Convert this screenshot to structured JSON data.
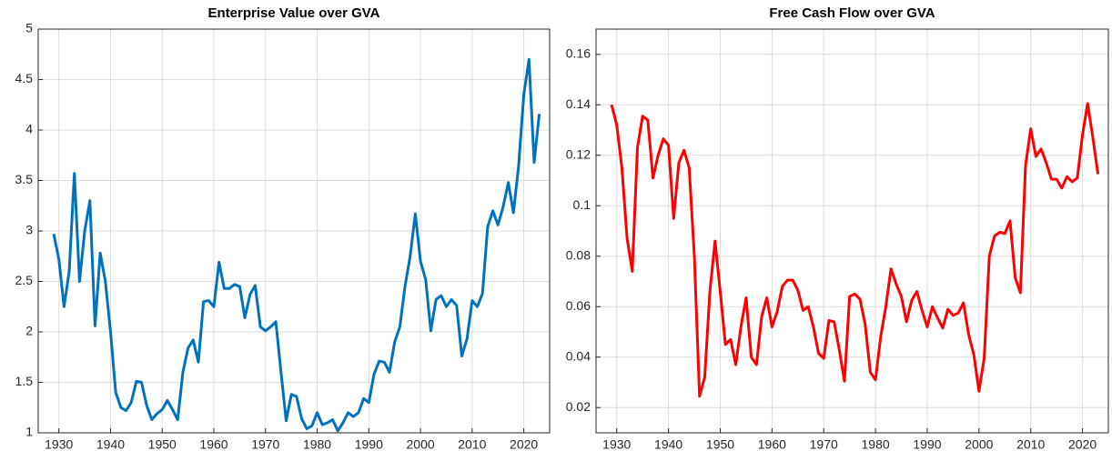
{
  "chart_data": [
    {
      "type": "line",
      "title": "Enterprise Value over GVA",
      "x": [
        1929,
        1930,
        1931,
        1932,
        1933,
        1934,
        1935,
        1936,
        1937,
        1938,
        1939,
        1940,
        1941,
        1942,
        1943,
        1944,
        1945,
        1946,
        1947,
        1948,
        1949,
        1950,
        1951,
        1952,
        1953,
        1954,
        1955,
        1956,
        1957,
        1958,
        1959,
        1960,
        1961,
        1962,
        1963,
        1964,
        1965,
        1966,
        1967,
        1968,
        1969,
        1970,
        1971,
        1972,
        1973,
        1974,
        1975,
        1976,
        1977,
        1978,
        1979,
        1980,
        1981,
        1982,
        1983,
        1984,
        1985,
        1986,
        1987,
        1988,
        1989,
        1990,
        1991,
        1992,
        1993,
        1994,
        1995,
        1996,
        1997,
        1998,
        1999,
        2000,
        2001,
        2002,
        2003,
        2004,
        2005,
        2006,
        2007,
        2008,
        2009,
        2010,
        2011,
        2012,
        2013,
        2014,
        2015,
        2016,
        2017,
        2018,
        2019,
        2020,
        2021,
        2022,
        2023
      ],
      "series": [
        {
          "color": "#0072bd",
          "values": [
            2.97,
            2.72,
            2.25,
            2.6,
            3.57,
            2.5,
            3.0,
            3.3,
            2.06,
            2.78,
            2.5,
            2.0,
            1.4,
            1.25,
            1.22,
            1.3,
            1.51,
            1.5,
            1.27,
            1.13,
            1.19,
            1.23,
            1.32,
            1.23,
            1.13,
            1.6,
            1.84,
            1.92,
            1.7,
            2.3,
            2.31,
            2.25,
            2.69,
            2.43,
            2.43,
            2.47,
            2.45,
            2.14,
            2.37,
            2.46,
            2.05,
            2.01,
            2.05,
            2.1,
            1.6,
            1.12,
            1.38,
            1.36,
            1.14,
            1.04,
            1.07,
            1.2,
            1.08,
            1.1,
            1.13,
            1.02,
            1.1,
            1.2,
            1.16,
            1.2,
            1.34,
            1.3,
            1.58,
            1.71,
            1.7,
            1.6,
            1.9,
            2.05,
            2.45,
            2.75,
            3.17,
            2.7,
            2.52,
            2.01,
            2.32,
            2.36,
            2.25,
            2.32,
            2.26,
            1.76,
            1.93,
            2.31,
            2.25,
            2.38,
            3.04,
            3.2,
            3.06,
            3.24,
            3.48,
            3.18,
            3.65,
            4.35,
            4.7,
            3.68,
            4.16
          ]
        }
      ],
      "xlim": [
        1926,
        2025
      ],
      "xticks": [
        1930,
        1940,
        1950,
        1960,
        1970,
        1980,
        1990,
        2000,
        2010,
        2020
      ],
      "ylim": [
        1,
        5
      ],
      "yticks": [
        1,
        1.5,
        2,
        2.5,
        3,
        3.5,
        4,
        4.5,
        5
      ],
      "grid": true
    },
    {
      "type": "line",
      "title": "Free Cash Flow over GVA",
      "x": [
        1929,
        1930,
        1931,
        1932,
        1933,
        1934,
        1935,
        1936,
        1937,
        1938,
        1939,
        1940,
        1941,
        1942,
        1943,
        1944,
        1945,
        1946,
        1947,
        1948,
        1949,
        1950,
        1951,
        1952,
        1953,
        1954,
        1955,
        1956,
        1957,
        1958,
        1959,
        1960,
        1961,
        1962,
        1963,
        1964,
        1965,
        1966,
        1967,
        1968,
        1969,
        1970,
        1971,
        1972,
        1973,
        1974,
        1975,
        1976,
        1977,
        1978,
        1979,
        1980,
        1981,
        1982,
        1983,
        1984,
        1985,
        1986,
        1987,
        1988,
        1989,
        1990,
        1991,
        1992,
        1993,
        1994,
        1995,
        1996,
        1997,
        1998,
        1999,
        2000,
        2001,
        2002,
        2003,
        2004,
        2005,
        2006,
        2007,
        2008,
        2009,
        2010,
        2011,
        2012,
        2013,
        2014,
        2015,
        2016,
        2017,
        2018,
        2019,
        2020,
        2021,
        2022,
        2023
      ],
      "series": [
        {
          "color": "#ff0000",
          "values": [
            0.14,
            0.132,
            0.115,
            0.087,
            0.074,
            0.123,
            0.1355,
            0.134,
            0.111,
            0.12,
            0.1265,
            0.124,
            0.095,
            0.117,
            0.122,
            0.115,
            0.08,
            0.0245,
            0.032,
            0.066,
            0.086,
            0.066,
            0.045,
            0.047,
            0.037,
            0.052,
            0.0635,
            0.04,
            0.037,
            0.056,
            0.0635,
            0.052,
            0.058,
            0.068,
            0.0705,
            0.0705,
            0.0665,
            0.0585,
            0.06,
            0.052,
            0.0415,
            0.0395,
            0.0545,
            0.054,
            0.043,
            0.0305,
            0.064,
            0.065,
            0.063,
            0.053,
            0.034,
            0.031,
            0.048,
            0.06,
            0.075,
            0.069,
            0.064,
            0.054,
            0.0625,
            0.066,
            0.0585,
            0.052,
            0.06,
            0.0555,
            0.0515,
            0.059,
            0.0565,
            0.0575,
            0.0615,
            0.049,
            0.041,
            0.0265,
            0.0395,
            0.08,
            0.088,
            0.0895,
            0.089,
            0.094,
            0.0715,
            0.0655,
            0.116,
            0.1305,
            0.1195,
            0.1225,
            0.117,
            0.1105,
            0.1105,
            0.107,
            0.1115,
            0.1095,
            0.111,
            0.128,
            0.1405,
            0.127,
            0.1125
          ]
        }
      ],
      "xlim": [
        1926,
        2025
      ],
      "xticks": [
        1930,
        1940,
        1950,
        1960,
        1970,
        1980,
        1990,
        2000,
        2010,
        2020
      ],
      "ylim": [
        0.01,
        0.17
      ],
      "yticks": [
        0.02,
        0.04,
        0.06,
        0.08,
        0.1,
        0.12,
        0.14,
        0.16
      ],
      "grid": true
    }
  ]
}
